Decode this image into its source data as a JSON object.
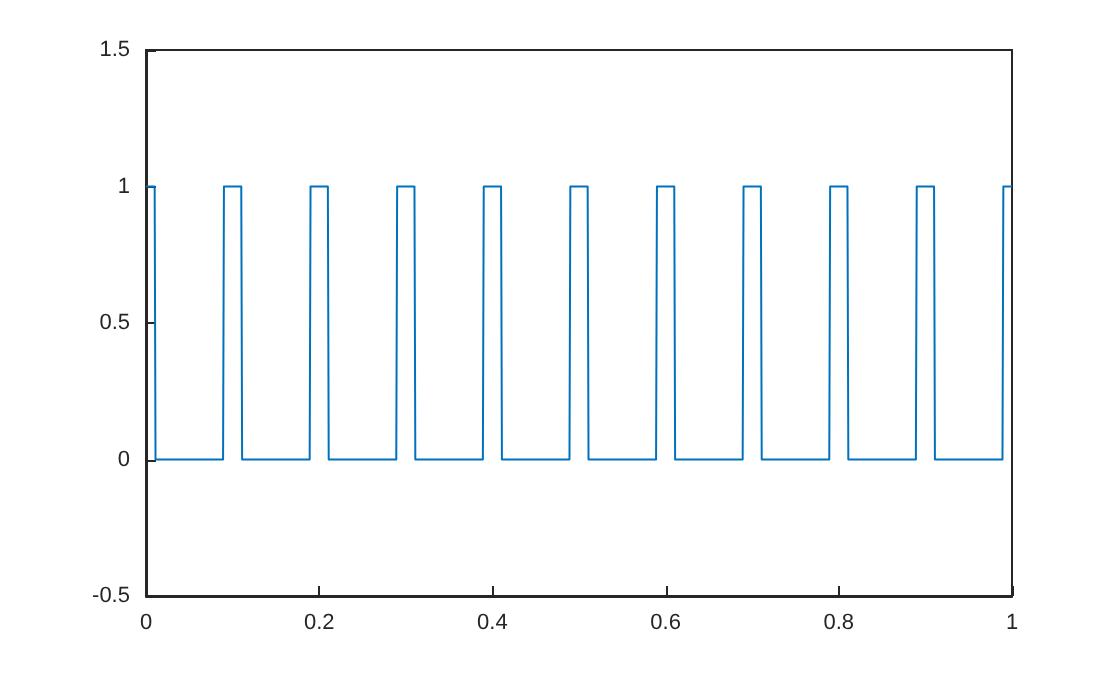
{
  "chart_data": {
    "type": "line",
    "xlim": [
      0,
      1
    ],
    "ylim": [
      -0.5,
      1.5
    ],
    "xticks": [
      0,
      0.2,
      0.4,
      0.6,
      0.8,
      1
    ],
    "yticks": [
      -0.5,
      0,
      0.5,
      1,
      1.5
    ],
    "grid": false,
    "marker": "none",
    "line_style": "solid",
    "series": [
      {
        "color": "#0072bd",
        "x": [
          0,
          0.01,
          0.011,
          0.089,
          0.09,
          0.11,
          0.111,
          0.189,
          0.19,
          0.21,
          0.211,
          0.289,
          0.29,
          0.31,
          0.311,
          0.389,
          0.39,
          0.41,
          0.411,
          0.489,
          0.49,
          0.51,
          0.511,
          0.589,
          0.59,
          0.61,
          0.611,
          0.689,
          0.69,
          0.71,
          0.711,
          0.789,
          0.79,
          0.81,
          0.811,
          0.889,
          0.89,
          0.91,
          0.911,
          0.989,
          0.99,
          1
        ],
        "values": [
          1,
          1,
          0,
          0,
          1,
          1,
          0,
          0,
          1,
          1,
          0,
          0,
          1,
          1,
          0,
          0,
          1,
          1,
          0,
          0,
          1,
          1,
          0,
          0,
          1,
          1,
          0,
          0,
          1,
          1,
          0,
          0,
          1,
          1,
          0,
          0,
          1,
          1,
          0,
          0,
          1,
          1
        ]
      }
    ]
  }
}
